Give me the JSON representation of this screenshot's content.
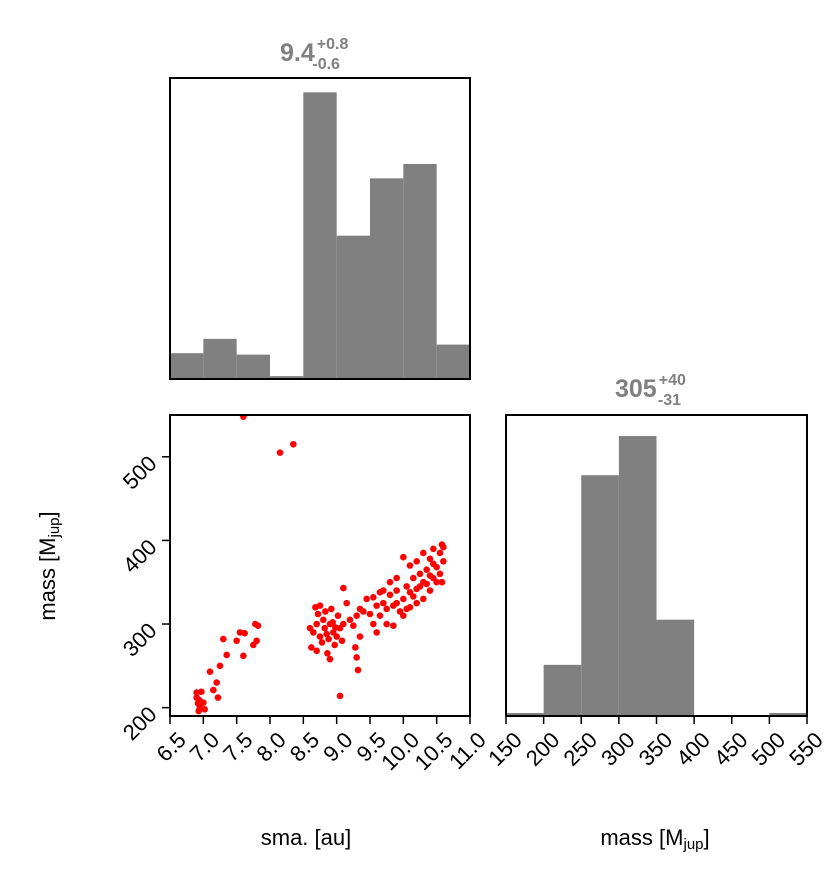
{
  "colors": {
    "hist": "#808080",
    "scatter": "#ff0000",
    "title": "#808080"
  },
  "panels": {
    "sma_hist": {
      "title_main": "9.4",
      "title_sup": "+0.8",
      "title_sub": "-0.6"
    },
    "mass_hist": {
      "title_main": "305",
      "title_sup": "+40",
      "title_sub": "-31"
    }
  },
  "axes": {
    "sma_label": "sma. [au]",
    "mass_label_main": "mass [M",
    "mass_label_sub": "jup",
    "mass_label_end": "]"
  },
  "chart_data": [
    {
      "type": "bar",
      "subtype": "histogram",
      "bin_edges": [
        6.5,
        7.0,
        7.5,
        8.0,
        8.5,
        9.0,
        9.5,
        10.0,
        10.5,
        11.0
      ],
      "values": [
        0.09,
        0.14,
        0.085,
        0.01,
        1.0,
        0.5,
        0.7,
        0.75,
        0.12
      ],
      "xlim": [
        6.5,
        11.0
      ],
      "ylim": [
        0,
        1.05
      ],
      "title": "9.4 +0.8 -0.6"
    },
    {
      "type": "bar",
      "subtype": "histogram",
      "bin_edges": [
        150,
        200,
        250,
        300,
        350,
        400,
        450,
        500,
        550
      ],
      "values": [
        0.01,
        0.17,
        0.8,
        0.93,
        0.32,
        0.0,
        0.0,
        0.01
      ],
      "xlim": [
        150,
        550
      ],
      "ylim": [
        0,
        1.0
      ],
      "xticks": [
        "150",
        "200",
        "250",
        "300",
        "350",
        "400",
        "450",
        "500",
        "550"
      ],
      "xlabel": "mass [Mjup]",
      "title": "305 +40 -31"
    },
    {
      "type": "scatter",
      "xlim": [
        6.5,
        11.0
      ],
      "ylim": [
        190,
        550
      ],
      "xticks": [
        "6.5",
        "7.0",
        "7.5",
        "8.0",
        "8.5",
        "9.0",
        "9.5",
        "10.0",
        "10.5",
        "11.0"
      ],
      "yticks": [
        "200",
        "300",
        "400",
        "500"
      ],
      "xlabel": "sma. [au]",
      "ylabel": "mass [Mjup]",
      "points": [
        [
          7.6,
          548
        ],
        [
          8.15,
          505
        ],
        [
          8.35,
          515
        ],
        [
          6.9,
          212
        ],
        [
          6.92,
          205
        ],
        [
          6.95,
          200
        ],
        [
          6.93,
          196
        ],
        [
          6.97,
          219
        ],
        [
          7.0,
          206
        ],
        [
          7.02,
          198
        ],
        [
          6.9,
          218
        ],
        [
          6.94,
          209
        ],
        [
          7.2,
          230
        ],
        [
          7.22,
          212
        ],
        [
          7.25,
          250
        ],
        [
          7.3,
          282
        ],
        [
          7.35,
          263
        ],
        [
          7.5,
          280
        ],
        [
          7.55,
          290
        ],
        [
          7.62,
          289
        ],
        [
          7.6,
          262
        ],
        [
          7.78,
          300
        ],
        [
          7.8,
          280
        ],
        [
          7.75,
          275
        ],
        [
          7.82,
          298
        ],
        [
          7.1,
          243
        ],
        [
          7.15,
          221
        ],
        [
          8.6,
          295
        ],
        [
          8.65,
          290
        ],
        [
          8.62,
          272
        ],
        [
          8.7,
          300
        ],
        [
          8.72,
          312
        ],
        [
          8.75,
          285
        ],
        [
          8.78,
          278
        ],
        [
          8.8,
          305
        ],
        [
          8.82,
          295
        ],
        [
          8.85,
          288
        ],
        [
          8.88,
          282
        ],
        [
          8.9,
          300
        ],
        [
          8.92,
          318
        ],
        [
          8.95,
          290
        ],
        [
          8.97,
          275
        ],
        [
          9.0,
          285
        ],
        [
          9.02,
          310
        ],
        [
          8.86,
          265
        ],
        [
          8.9,
          258
        ],
        [
          9.05,
          295
        ],
        [
          9.1,
          300
        ],
        [
          8.7,
          268
        ],
        [
          8.68,
          320
        ],
        [
          8.75,
          322
        ],
        [
          8.83,
          315
        ],
        [
          9.08,
          280
        ],
        [
          8.94,
          302
        ],
        [
          8.98,
          296
        ],
        [
          9.05,
          214
        ],
        [
          9.1,
          343
        ],
        [
          9.15,
          325
        ],
        [
          9.2,
          305
        ],
        [
          9.25,
          298
        ],
        [
          9.3,
          310
        ],
        [
          9.35,
          318
        ],
        [
          9.4,
          315
        ],
        [
          9.45,
          330
        ],
        [
          9.5,
          312
        ],
        [
          9.55,
          300
        ],
        [
          9.6,
          322
        ],
        [
          9.65,
          310
        ],
        [
          9.7,
          325
        ],
        [
          9.75,
          318
        ],
        [
          9.8,
          335
        ],
        [
          9.85,
          322
        ],
        [
          9.9,
          340
        ],
        [
          9.95,
          315
        ],
        [
          10.0,
          330
        ],
        [
          10.05,
          345
        ],
        [
          10.1,
          338
        ],
        [
          10.15,
          355
        ],
        [
          10.2,
          342
        ],
        [
          10.25,
          360
        ],
        [
          10.3,
          350
        ],
        [
          10.35,
          365
        ],
        [
          10.4,
          358
        ],
        [
          10.45,
          372
        ],
        [
          10.5,
          368
        ],
        [
          10.55,
          385
        ],
        [
          10.58,
          395
        ],
        [
          10.6,
          375
        ],
        [
          10.58,
          350
        ],
        [
          9.3,
          260
        ],
        [
          9.32,
          245
        ],
        [
          9.35,
          285
        ],
        [
          9.28,
          272
        ],
        [
          9.6,
          290
        ],
        [
          9.75,
          300
        ],
        [
          9.85,
          298
        ],
        [
          10.0,
          310
        ],
        [
          10.1,
          320
        ],
        [
          10.2,
          325
        ],
        [
          10.3,
          330
        ],
        [
          10.4,
          340
        ],
        [
          10.5,
          350
        ],
        [
          10.55,
          360
        ],
        [
          10.0,
          380
        ],
        [
          10.1,
          370
        ],
        [
          10.2,
          375
        ],
        [
          10.3,
          385
        ],
        [
          9.9,
          355
        ],
        [
          9.8,
          350
        ],
        [
          9.7,
          340
        ],
        [
          10.45,
          390
        ],
        [
          10.4,
          378
        ],
        [
          10.6,
          392
        ],
        [
          9.55,
          332
        ],
        [
          9.65,
          338
        ],
        [
          9.9,
          325
        ],
        [
          10.05,
          318
        ],
        [
          10.15,
          333
        ],
        [
          10.25,
          345
        ],
        [
          10.35,
          348
        ],
        [
          10.45,
          355
        ]
      ]
    }
  ]
}
